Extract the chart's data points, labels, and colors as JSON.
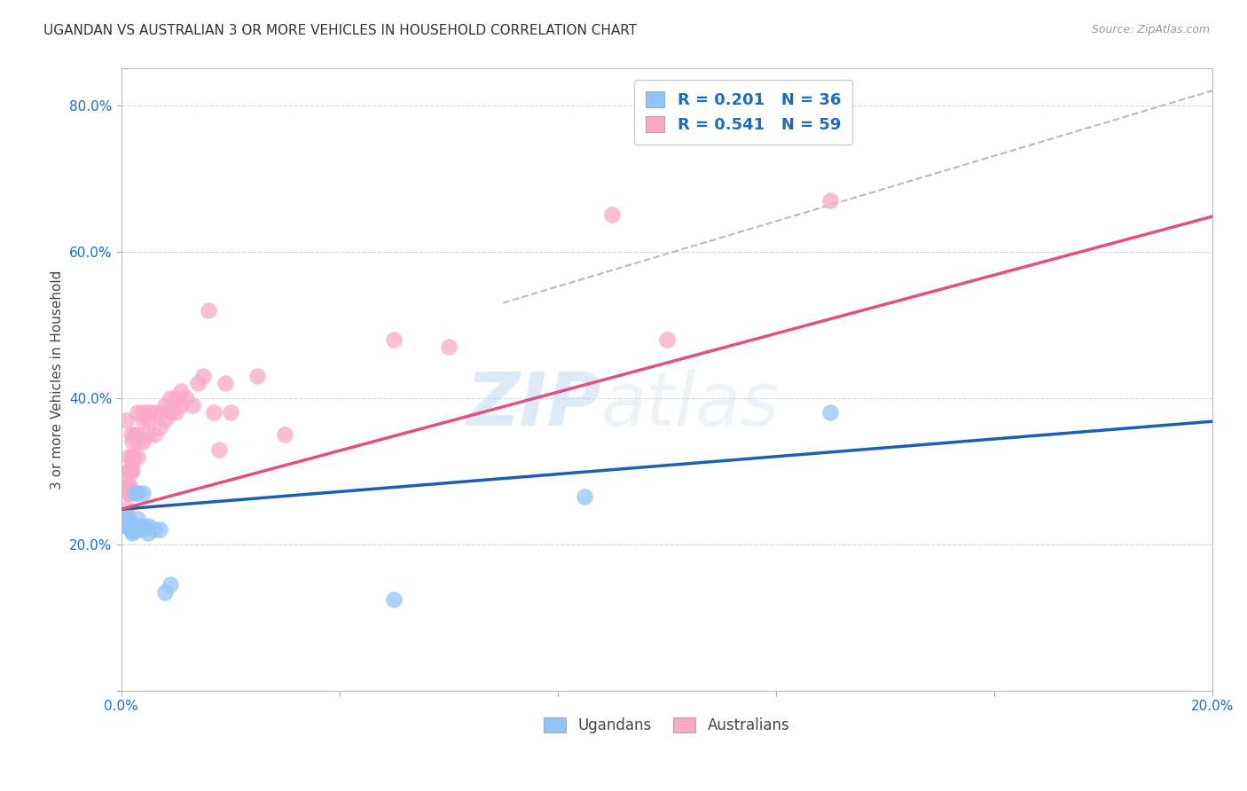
{
  "title": "UGANDAN VS AUSTRALIAN 3 OR MORE VEHICLES IN HOUSEHOLD CORRELATION CHART",
  "source": "Source: ZipAtlas.com",
  "ylabel": "3 or more Vehicles in Household",
  "xlabel": "",
  "xlim": [
    0.0,
    0.2
  ],
  "ylim": [
    0.0,
    0.85
  ],
  "ugandan_color": "#92c5f7",
  "australian_color": "#f9a8c8",
  "ugandan_R": 0.201,
  "ugandan_N": 36,
  "australian_R": 0.541,
  "australian_N": 59,
  "ugandan_line_color": "#1a5fb4",
  "australian_line_color": "#e05080",
  "trend_line_color": "#c0b8b8",
  "legend_text_color": "#1a6fbd",
  "watermark_zip": "ZIP",
  "watermark_atlas": "atlas",
  "background_color": "#ffffff",
  "grid_color": "#d8d8d8",
  "ugandan_x": [
    0.0008,
    0.0009,
    0.001,
    0.001,
    0.001,
    0.001,
    0.0012,
    0.0013,
    0.0014,
    0.0015,
    0.0015,
    0.0016,
    0.0017,
    0.0018,
    0.002,
    0.002,
    0.002,
    0.002,
    0.0022,
    0.0023,
    0.0025,
    0.003,
    0.003,
    0.003,
    0.004,
    0.004,
    0.004,
    0.005,
    0.005,
    0.006,
    0.007,
    0.008,
    0.009,
    0.05,
    0.085,
    0.13
  ],
  "ugandan_y": [
    0.235,
    0.235,
    0.232,
    0.228,
    0.225,
    0.225,
    0.225,
    0.228,
    0.225,
    0.228,
    0.23,
    0.225,
    0.22,
    0.22,
    0.22,
    0.218,
    0.215,
    0.22,
    0.22,
    0.225,
    0.27,
    0.22,
    0.235,
    0.27,
    0.22,
    0.225,
    0.27,
    0.215,
    0.225,
    0.22,
    0.22,
    0.135,
    0.145,
    0.125,
    0.265,
    0.38
  ],
  "australian_x": [
    0.0007,
    0.0008,
    0.0009,
    0.001,
    0.001,
    0.001,
    0.001,
    0.0012,
    0.0013,
    0.0014,
    0.0015,
    0.0015,
    0.0016,
    0.0017,
    0.0018,
    0.002,
    0.002,
    0.002,
    0.002,
    0.0022,
    0.0025,
    0.003,
    0.003,
    0.003,
    0.003,
    0.004,
    0.004,
    0.004,
    0.005,
    0.005,
    0.005,
    0.006,
    0.006,
    0.007,
    0.007,
    0.008,
    0.008,
    0.009,
    0.009,
    0.01,
    0.01,
    0.011,
    0.011,
    0.012,
    0.013,
    0.014,
    0.015,
    0.016,
    0.017,
    0.018,
    0.019,
    0.02,
    0.025,
    0.03,
    0.05,
    0.06,
    0.09,
    0.1,
    0.13
  ],
  "australian_y": [
    0.24,
    0.24,
    0.37,
    0.24,
    0.25,
    0.27,
    0.29,
    0.28,
    0.3,
    0.32,
    0.28,
    0.3,
    0.27,
    0.3,
    0.35,
    0.3,
    0.31,
    0.32,
    0.34,
    0.32,
    0.35,
    0.32,
    0.34,
    0.35,
    0.38,
    0.34,
    0.37,
    0.38,
    0.35,
    0.37,
    0.38,
    0.35,
    0.38,
    0.36,
    0.38,
    0.39,
    0.37,
    0.38,
    0.4,
    0.38,
    0.4,
    0.39,
    0.41,
    0.4,
    0.39,
    0.42,
    0.43,
    0.52,
    0.38,
    0.33,
    0.42,
    0.38,
    0.43,
    0.35,
    0.48,
    0.47,
    0.65,
    0.48,
    0.67
  ]
}
